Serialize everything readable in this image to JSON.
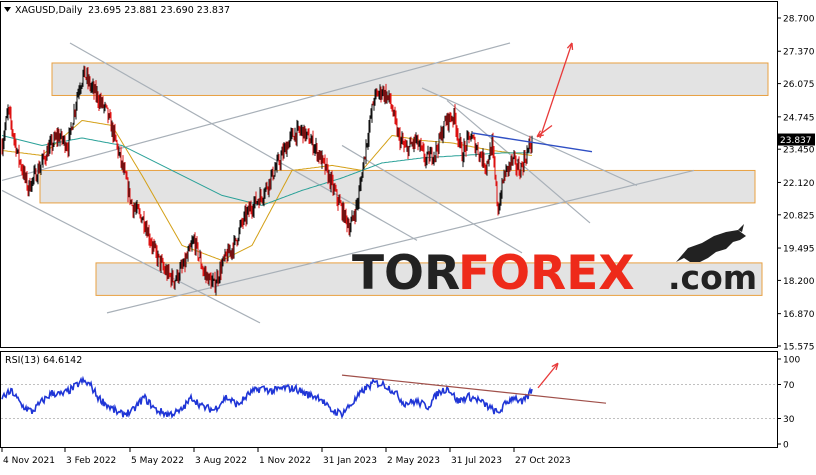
{
  "header": {
    "symbol": "XAGUSD,Daily",
    "ohlc": "23.695 23.881 23.690 23.837"
  },
  "logo": {
    "part1": "TOR",
    "part2": "FOREX",
    "part3": ".com"
  },
  "colors": {
    "bull": "#111111",
    "bear": "#dd1111",
    "zone": "#e3e3e3",
    "zone_border": "#e8a040",
    "ma_fast": "#d4a017",
    "ma_slow": "#2aa198",
    "trend": "#a8b0b8",
    "resistance": "#2f4fc4",
    "arrow": "#e83a3a",
    "rsi_line": "#1f35d6",
    "rsi_trend": "#a0504a",
    "logo_dark": "#222222",
    "logo_accent": "#ee2a1a"
  },
  "chart_data": [
    {
      "type": "candlestick",
      "name": "XAGUSD Daily",
      "ylim": [
        15.575,
        28.7
      ],
      "y_ticks": [
        "28.700",
        "27.370",
        "26.075",
        "24.745",
        "23.450",
        "22.120",
        "20.825",
        "19.495",
        "18.200",
        "16.870",
        "15.575"
      ],
      "current_price": "23.837",
      "x_ticks": [
        "4 Nov 2021",
        "3 Feb 2022",
        "5 May 2022",
        "3 Aug 2022",
        "1 Nov 2022",
        "31 Jan 2023",
        "2 May 2023",
        "31 Jul 2023",
        "27 Oct 2023"
      ],
      "price_path": [
        [
          0,
          23.6
        ],
        [
          6,
          25.0
        ],
        [
          16,
          23.2
        ],
        [
          26,
          21.9
        ],
        [
          36,
          22.6
        ],
        [
          46,
          23.4
        ],
        [
          56,
          24.0
        ],
        [
          66,
          23.6
        ],
        [
          76,
          25.8
        ],
        [
          82,
          26.5
        ],
        [
          88,
          26.0
        ],
        [
          96,
          25.5
        ],
        [
          104,
          25.0
        ],
        [
          112,
          24.0
        ],
        [
          120,
          22.8
        ],
        [
          130,
          21.2
        ],
        [
          142,
          20.6
        ],
        [
          152,
          19.4
        ],
        [
          162,
          18.6
        ],
        [
          172,
          18.2
        ],
        [
          182,
          18.8
        ],
        [
          192,
          19.8
        ],
        [
          202,
          18.5
        ],
        [
          212,
          18.0
        ],
        [
          222,
          19.0
        ],
        [
          232,
          19.6
        ],
        [
          240,
          20.5
        ],
        [
          250,
          21.2
        ],
        [
          260,
          21.6
        ],
        [
          270,
          22.4
        ],
        [
          280,
          23.2
        ],
        [
          290,
          24.0
        ],
        [
          300,
          24.2
        ],
        [
          312,
          23.6
        ],
        [
          322,
          22.8
        ],
        [
          332,
          21.8
        ],
        [
          340,
          21.0
        ],
        [
          348,
          20.3
        ],
        [
          356,
          21.4
        ],
        [
          364,
          23.6
        ],
        [
          372,
          25.5
        ],
        [
          380,
          25.8
        ],
        [
          388,
          25.4
        ],
        [
          396,
          24.0
        ],
        [
          404,
          23.4
        ],
        [
          414,
          23.8
        ],
        [
          424,
          23.0
        ],
        [
          434,
          23.4
        ],
        [
          444,
          24.6
        ],
        [
          452,
          24.8
        ],
        [
          460,
          23.2
        ],
        [
          468,
          24.0
        ],
        [
          476,
          23.4
        ],
        [
          484,
          22.8
        ],
        [
          490,
          23.6
        ],
        [
          496,
          21.0
        ],
        [
          502,
          22.4
        ],
        [
          510,
          23.0
        ],
        [
          518,
          22.6
        ],
        [
          526,
          23.4
        ],
        [
          530,
          23.837
        ]
      ],
      "moving_averages": [
        {
          "name": "fast",
          "values": [
            [
              0,
              23.4
            ],
            [
              40,
              23.2
            ],
            [
              80,
              24.6
            ],
            [
              110,
              24.4
            ],
            [
              140,
              22.4
            ],
            [
              180,
              19.6
            ],
            [
              220,
              19.0
            ],
            [
              250,
              19.6
            ],
            [
              290,
              22.6
            ],
            [
              330,
              22.8
            ],
            [
              360,
              22.6
            ],
            [
              390,
              24.0
            ],
            [
              420,
              23.8
            ],
            [
              450,
              23.7
            ],
            [
              490,
              23.4
            ],
            [
              530,
              23.2
            ]
          ]
        },
        {
          "name": "slow",
          "values": [
            [
              0,
              24.0
            ],
            [
              40,
              23.6
            ],
            [
              80,
              23.9
            ],
            [
              120,
              23.6
            ],
            [
              170,
              22.6
            ],
            [
              220,
              21.6
            ],
            [
              260,
              21.2
            ],
            [
              300,
              21.8
            ],
            [
              340,
              22.3
            ],
            [
              380,
              22.9
            ],
            [
              420,
              23.1
            ],
            [
              460,
              23.2
            ],
            [
              500,
              23.3
            ],
            [
              530,
              23.3
            ]
          ]
        }
      ],
      "zones": [
        {
          "name": "resistance-zone",
          "y_range": [
            25.6,
            26.9
          ],
          "x_range": [
            52,
            768
          ]
        },
        {
          "name": "middle-zone",
          "y_range": [
            21.3,
            22.6
          ],
          "x_range": [
            40,
            755
          ]
        },
        {
          "name": "support-zone",
          "y_range": [
            17.6,
            18.9
          ],
          "x_range": [
            96,
            762
          ]
        }
      ],
      "trendlines": [
        {
          "name": "channel-upper",
          "from": [
            0,
            22.2
          ],
          "to": [
            508,
            27.7
          ]
        },
        {
          "name": "channel-lower",
          "from": [
            105,
            16.9
          ],
          "to": [
            692,
            22.6
          ]
        },
        {
          "name": "downtrend-1",
          "from": [
            68,
            27.7
          ],
          "to": [
            415,
            19.8
          ]
        },
        {
          "name": "downtrend-2",
          "from": [
            0,
            21.8
          ],
          "to": [
            258,
            16.5
          ]
        },
        {
          "name": "downtrend-3",
          "from": [
            340,
            23.6
          ],
          "to": [
            520,
            19.3
          ]
        },
        {
          "name": "downtrend-4",
          "from": [
            420,
            25.9
          ],
          "to": [
            635,
            22.0
          ]
        },
        {
          "name": "downtrend-5",
          "from": [
            445,
            25.4
          ],
          "to": [
            588,
            20.5
          ]
        }
      ],
      "resistance_line": {
        "from": [
          470,
          24.1
        ],
        "to": [
          590,
          23.35
        ]
      },
      "projection_arrow": {
        "from": [
          538,
          23.9
        ],
        "to": [
          570,
          27.7
        ]
      }
    },
    {
      "type": "line",
      "name": "RSI",
      "label": "RSI(13) 64.6142",
      "ylim": [
        0,
        100
      ],
      "y_ticks": [
        "100",
        "70",
        "30",
        "0"
      ],
      "rsi_path": [
        [
          0,
          55
        ],
        [
          10,
          62
        ],
        [
          20,
          45
        ],
        [
          30,
          38
        ],
        [
          40,
          50
        ],
        [
          50,
          60
        ],
        [
          60,
          58
        ],
        [
          70,
          65
        ],
        [
          80,
          74
        ],
        [
          88,
          70
        ],
        [
          96,
          55
        ],
        [
          106,
          45
        ],
        [
          118,
          35
        ],
        [
          130,
          38
        ],
        [
          142,
          55
        ],
        [
          154,
          40
        ],
        [
          166,
          35
        ],
        [
          178,
          38
        ],
        [
          190,
          55
        ],
        [
          200,
          44
        ],
        [
          212,
          40
        ],
        [
          224,
          55
        ],
        [
          236,
          46
        ],
        [
          248,
          60
        ],
        [
          260,
          66
        ],
        [
          270,
          62
        ],
        [
          282,
          66
        ],
        [
          294,
          65
        ],
        [
          306,
          58
        ],
        [
          318,
          55
        ],
        [
          328,
          40
        ],
        [
          340,
          36
        ],
        [
          352,
          50
        ],
        [
          362,
          64
        ],
        [
          372,
          72
        ],
        [
          382,
          70
        ],
        [
          392,
          62
        ],
        [
          402,
          48
        ],
        [
          414,
          50
        ],
        [
          426,
          44
        ],
        [
          436,
          60
        ],
        [
          446,
          66
        ],
        [
          456,
          50
        ],
        [
          466,
          56
        ],
        [
          476,
          52
        ],
        [
          486,
          44
        ],
        [
          496,
          36
        ],
        [
          504,
          48
        ],
        [
          512,
          56
        ],
        [
          520,
          48
        ],
        [
          526,
          56
        ],
        [
          530,
          64.6
        ]
      ],
      "trendline": {
        "from": [
          340,
          81
        ],
        "to": [
          604,
          48
        ]
      },
      "projection_arrow": {
        "from": [
          536,
          66
        ],
        "to": [
          556,
          95
        ]
      }
    }
  ]
}
